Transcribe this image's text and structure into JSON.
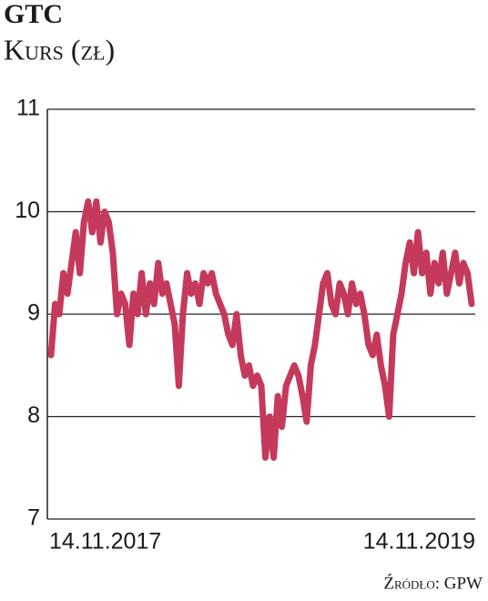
{
  "chart_data": {
    "type": "line",
    "title": "GTC",
    "subtitle": "Kurs (zł)",
    "source": "Źródło: GPW",
    "color": "#c53a5c",
    "ylim": [
      7,
      11
    ],
    "yticks": [
      7,
      8,
      9,
      10,
      11
    ],
    "grid": true,
    "categories": [
      "14.11.2017",
      null,
      null,
      null,
      null,
      null,
      null,
      null,
      null,
      null,
      null,
      null,
      null,
      null,
      null,
      null,
      null,
      null,
      null,
      null,
      null,
      null,
      null,
      null,
      null,
      null,
      null,
      null,
      null,
      null,
      null,
      null,
      null,
      null,
      null,
      null,
      null,
      null,
      null,
      null,
      null,
      null,
      null,
      null,
      null,
      null,
      null,
      null,
      null,
      null,
      null,
      null,
      null,
      null,
      null,
      null,
      null,
      null,
      null,
      null,
      null,
      null,
      null,
      null,
      null,
      null,
      null,
      null,
      null,
      null,
      null,
      null,
      null,
      null,
      null,
      null,
      null,
      null,
      null,
      null,
      null,
      null,
      null,
      null,
      null,
      null,
      null,
      null,
      null,
      null,
      null,
      null,
      null,
      null,
      null,
      null,
      null,
      null,
      null,
      null,
      null,
      null,
      "14.11.2019"
    ],
    "values": [
      8.6,
      9.1,
      9.0,
      9.4,
      9.2,
      9.5,
      9.8,
      9.4,
      9.9,
      10.1,
      9.8,
      10.1,
      9.7,
      10.0,
      9.9,
      9.6,
      9.0,
      9.2,
      9.1,
      8.7,
      9.2,
      9.0,
      9.4,
      9.0,
      9.3,
      9.1,
      9.5,
      9.2,
      9.3,
      9.1,
      8.9,
      8.3,
      9.0,
      9.4,
      9.2,
      9.3,
      9.1,
      9.4,
      9.3,
      9.4,
      9.2,
      9.1,
      9.0,
      8.8,
      8.7,
      9.0,
      8.6,
      8.4,
      8.5,
      8.3,
      8.4,
      8.3,
      7.6,
      8.0,
      7.6,
      8.2,
      7.9,
      8.3,
      8.4,
      8.5,
      8.4,
      8.2,
      7.95,
      8.5,
      8.7,
      9.0,
      9.3,
      9.4,
      9.1,
      9.0,
      9.3,
      9.2,
      9.0,
      9.3,
      9.1,
      9.2,
      9.0,
      8.7,
      8.6,
      8.8,
      8.5,
      8.3,
      8.0,
      8.8,
      9.0,
      9.2,
      9.5,
      9.7,
      9.4,
      9.8,
      9.4,
      9.6,
      9.2,
      9.5,
      9.3,
      9.6,
      9.2,
      9.4,
      9.6,
      9.3,
      9.5,
      9.4,
      9.1
    ]
  }
}
